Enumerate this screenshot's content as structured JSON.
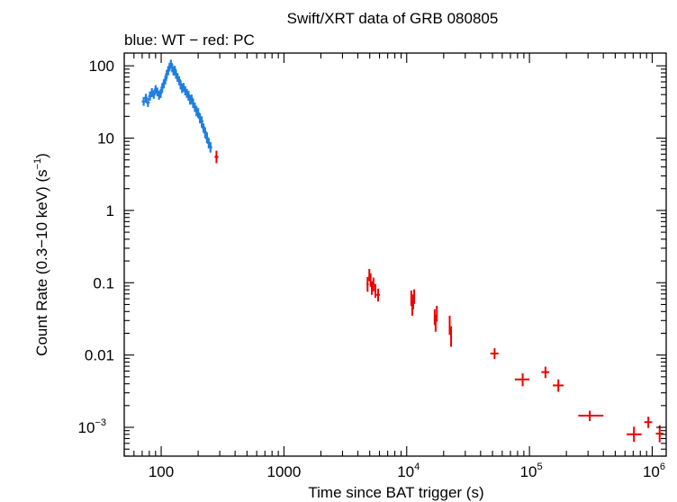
{
  "title": "Swift/XRT data of GRB 080805",
  "subtitle": "blue: WT − red: PC",
  "colors": {
    "wt": "#1f7fe0",
    "pc": "#ee0000",
    "axis": "#000000"
  },
  "chart_data": {
    "type": "scatter",
    "title": "Swift/XRT data of GRB 080805",
    "subtitle": "blue: WT − red: PC",
    "xlabel": "Time since BAT trigger (s)",
    "ylabel": "Count Rate (0.3−10 keV) (s",
    "ylabel_sup": "−1",
    "ylabel_end": ")",
    "xscale": "log",
    "yscale": "log",
    "xlim": [
      50,
      1300000
    ],
    "ylim": [
      0.0004,
      150
    ],
    "x_ticks": [
      {
        "value": 100,
        "label": "100"
      },
      {
        "value": 1000,
        "label": "1000"
      },
      {
        "value": 10000,
        "base": "10",
        "exp": "4"
      },
      {
        "value": 100000,
        "base": "10",
        "exp": "5"
      },
      {
        "value": 1000000,
        "base": "10",
        "exp": "6"
      }
    ],
    "y_ticks": [
      {
        "value": 100,
        "label": "100"
      },
      {
        "value": 10,
        "label": "10"
      },
      {
        "value": 1,
        "label": "1"
      },
      {
        "value": 0.1,
        "label": "0.1"
      },
      {
        "value": 0.01,
        "label": "0.01"
      },
      {
        "value": 0.001,
        "base": "10",
        "exp": "−3"
      }
    ],
    "series": [
      {
        "name": "WT",
        "color": "#1f7fe0",
        "points": [
          [
            72,
            32,
            28,
            37
          ],
          [
            75,
            36,
            31,
            41
          ],
          [
            78,
            31,
            27,
            36
          ],
          [
            81,
            38,
            33,
            44
          ],
          [
            84,
            43,
            37,
            49
          ],
          [
            87,
            40,
            35,
            46
          ],
          [
            90,
            47,
            41,
            54
          ],
          [
            93,
            44,
            38,
            50
          ],
          [
            96,
            39,
            34,
            45
          ],
          [
            99,
            42,
            36,
            48
          ],
          [
            102,
            50,
            43,
            57
          ],
          [
            105,
            57,
            49,
            65
          ],
          [
            108,
            64,
            55,
            73
          ],
          [
            111,
            76,
            66,
            87
          ],
          [
            114,
            86,
            74,
            98
          ],
          [
            117,
            97,
            84,
            110
          ],
          [
            120,
            106,
            92,
            121
          ],
          [
            123,
            94,
            81,
            107
          ],
          [
            126,
            84,
            73,
            96
          ],
          [
            129,
            88,
            76,
            100
          ],
          [
            132,
            77,
            66,
            88
          ],
          [
            136,
            69,
            60,
            79
          ],
          [
            140,
            63,
            54,
            72
          ],
          [
            144,
            55,
            47,
            63
          ],
          [
            148,
            49,
            42,
            56
          ],
          [
            152,
            51,
            44,
            58
          ],
          [
            157,
            45,
            39,
            52
          ],
          [
            162,
            42,
            36,
            48
          ],
          [
            167,
            39,
            33,
            45
          ],
          [
            172,
            34,
            29,
            39
          ],
          [
            177,
            35,
            30,
            40
          ],
          [
            182,
            30,
            26,
            35
          ],
          [
            188,
            27,
            23,
            31
          ],
          [
            194,
            24,
            20,
            28
          ],
          [
            200,
            22,
            19,
            26
          ],
          [
            207,
            19,
            16,
            22
          ],
          [
            214,
            17,
            14,
            20
          ],
          [
            221,
            14,
            12,
            16
          ],
          [
            228,
            12,
            10,
            14
          ],
          [
            236,
            10,
            8.5,
            12
          ],
          [
            244,
            8.6,
            7.2,
            10
          ],
          [
            252,
            7.5,
            6.3,
            8.8
          ]
        ]
      },
      {
        "name": "PC",
        "color": "#ee0000",
        "points": [
          [
            282,
            5.5,
            4.5,
            6.7,
            272,
            292
          ],
          [
            4800,
            0.095,
            0.075,
            0.12,
            4700,
            4900
          ],
          [
            4960,
            0.13,
            0.105,
            0.155,
            4900,
            5020
          ],
          [
            5080,
            0.11,
            0.088,
            0.135,
            5020,
            5140
          ],
          [
            5200,
            0.085,
            0.068,
            0.105,
            5140,
            5260
          ],
          [
            5360,
            0.095,
            0.076,
            0.118,
            5260,
            5460
          ],
          [
            5560,
            0.078,
            0.062,
            0.096,
            5460,
            5660
          ],
          [
            5850,
            0.068,
            0.055,
            0.083,
            5660,
            6050
          ],
          [
            10900,
            0.062,
            0.048,
            0.078,
            10800,
            11000
          ],
          [
            11100,
            0.045,
            0.035,
            0.057,
            11000,
            11200
          ],
          [
            11300,
            0.055,
            0.043,
            0.069,
            11200,
            11400
          ],
          [
            11500,
            0.065,
            0.051,
            0.081,
            11400,
            11600
          ],
          [
            16900,
            0.034,
            0.026,
            0.043,
            16800,
            17000
          ],
          [
            17200,
            0.028,
            0.021,
            0.036,
            17000,
            17400
          ],
          [
            17600,
            0.038,
            0.029,
            0.048,
            17400,
            17800
          ],
          [
            22400,
            0.026,
            0.019,
            0.035,
            22200,
            22600
          ],
          [
            23000,
            0.018,
            0.013,
            0.025,
            22600,
            23400
          ],
          [
            52000,
            0.0105,
            0.0088,
            0.0124,
            48000,
            56000
          ],
          [
            88000,
            0.0046,
            0.0037,
            0.0056,
            76000,
            100000
          ],
          [
            135000,
            0.0058,
            0.0048,
            0.0069,
            125000,
            145000
          ],
          [
            172000,
            0.0038,
            0.0031,
            0.0046,
            155000,
            190000
          ],
          [
            310000,
            0.00145,
            0.00122,
            0.0017,
            250000,
            400000
          ],
          [
            710000,
            0.0008,
            0.00063,
            0.00102,
            620000,
            820000
          ],
          [
            930000,
            0.00118,
            0.00098,
            0.0014,
            860000,
            1000000
          ],
          [
            1150000,
            0.00082,
            0.00062,
            0.00107,
            1070000,
            1230000
          ]
        ]
      }
    ]
  }
}
